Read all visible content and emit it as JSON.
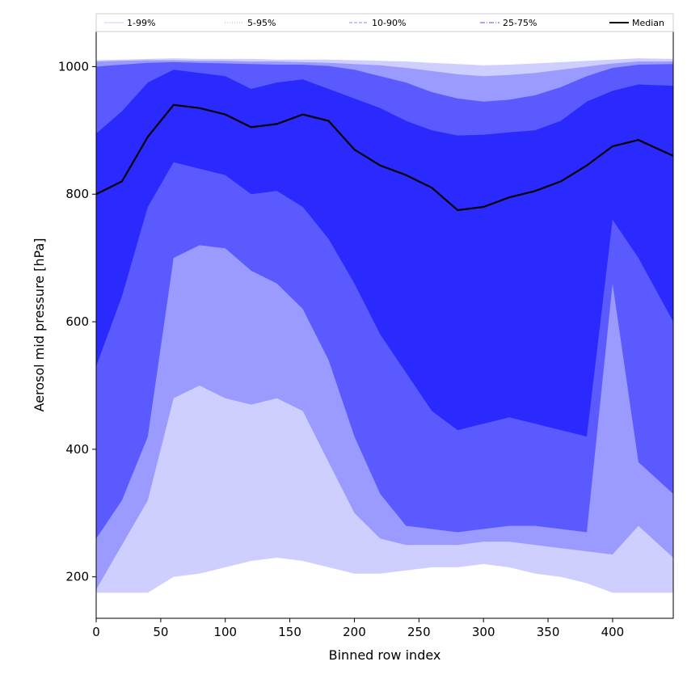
{
  "chart_data": {
    "type": "area",
    "title": "",
    "xlabel": "Binned row index",
    "ylabel": "Aerosol mid pressure [hPa]",
    "xlim": [
      0,
      447
    ],
    "ylim": [
      135,
      1055
    ],
    "grid": false,
    "legend_position": "top",
    "x_ticks": [
      0,
      50,
      100,
      150,
      200,
      250,
      300,
      350,
      400
    ],
    "y_ticks": [
      200,
      400,
      600,
      800,
      1000
    ],
    "legend": [
      {
        "label": "1-99%",
        "color": "#cfcfff",
        "style": "solid-thin"
      },
      {
        "label": "5-95%",
        "color": "#a8a8ff",
        "style": "dotted"
      },
      {
        "label": "10-90%",
        "color": "#8a8aff",
        "style": "dashed"
      },
      {
        "label": "25-75%",
        "color": "#4b4bff",
        "style": "dashdot"
      },
      {
        "label": "Median",
        "color": "#000000",
        "style": "solid-thick"
      }
    ],
    "x": [
      0,
      20,
      40,
      60,
      80,
      100,
      120,
      140,
      160,
      180,
      200,
      220,
      240,
      260,
      280,
      300,
      320,
      340,
      360,
      380,
      400,
      420,
      447
    ],
    "series": [
      {
        "name": "1-99%",
        "fill": "#cfcfff",
        "lower": [
          175,
          175,
          175,
          200,
          205,
          215,
          225,
          230,
          225,
          215,
          205,
          205,
          210,
          215,
          215,
          220,
          215,
          205,
          200,
          190,
          175,
          175,
          175
        ],
        "upper": [
          1010,
          1011,
          1012,
          1013,
          1012,
          1012,
          1012,
          1011,
          1011,
          1011,
          1010,
          1009,
          1008,
          1006,
          1004,
          1002,
          1003,
          1005,
          1007,
          1009,
          1011,
          1013,
          1012
        ]
      },
      {
        "name": "5-95%",
        "fill": "#9a9aff",
        "lower": [
          180,
          250,
          320,
          480,
          500,
          480,
          470,
          480,
          460,
          380,
          300,
          260,
          250,
          250,
          250,
          255,
          255,
          250,
          245,
          240,
          235,
          280,
          230
        ],
        "upper": [
          1008,
          1009,
          1010,
          1010,
          1009,
          1009,
          1008,
          1008,
          1007,
          1006,
          1004,
          1002,
          998,
          993,
          988,
          985,
          987,
          990,
          995,
          1000,
          1005,
          1008,
          1008
        ]
      },
      {
        "name": "10-90%",
        "fill": "#5a5aff",
        "lower": [
          260,
          320,
          420,
          700,
          720,
          715,
          680,
          660,
          620,
          540,
          420,
          330,
          280,
          275,
          270,
          275,
          280,
          280,
          275,
          270,
          660,
          380,
          330
        ],
        "upper": [
          1000,
          1003,
          1006,
          1007,
          1006,
          1005,
          1004,
          1003,
          1003,
          1001,
          995,
          985,
          975,
          960,
          950,
          945,
          948,
          955,
          968,
          985,
          998,
          1003,
          1004
        ]
      },
      {
        "name": "25-75%",
        "fill": "#2a2aff",
        "lower": [
          530,
          640,
          780,
          850,
          840,
          830,
          800,
          805,
          780,
          730,
          660,
          580,
          520,
          460,
          430,
          440,
          450,
          440,
          430,
          420,
          760,
          700,
          600
        ],
        "upper": [
          895,
          930,
          975,
          995,
          990,
          985,
          965,
          975,
          980,
          965,
          950,
          935,
          915,
          900,
          892,
          893,
          897,
          900,
          915,
          945,
          962,
          972,
          970
        ]
      },
      {
        "name": "Median",
        "values": [
          800,
          820,
          890,
          940,
          935,
          925,
          905,
          910,
          925,
          915,
          870,
          845,
          830,
          810,
          775,
          780,
          795,
          805,
          820,
          845,
          875,
          885,
          860
        ]
      }
    ]
  }
}
